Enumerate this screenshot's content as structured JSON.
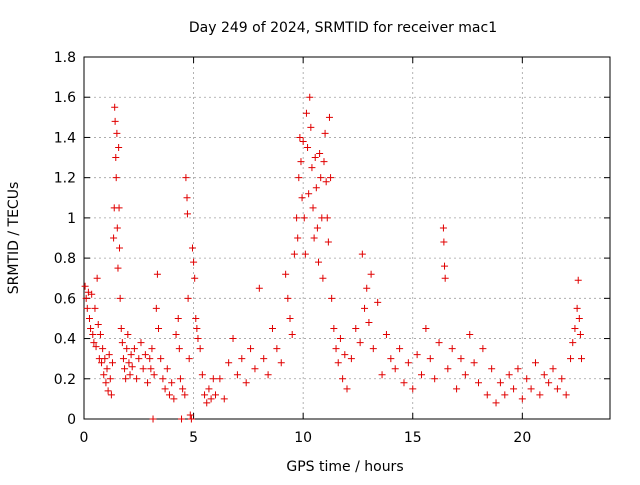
{
  "chart_data": {
    "type": "scatter",
    "title": "Day 249 of 2024, SRMTID for receiver mac1",
    "xlabel": "GPS time / hours",
    "ylabel": "SRMTID / TECUs",
    "xlim": [
      0,
      24
    ],
    "ylim": [
      0,
      1.8
    ],
    "grid": true,
    "marker": "+",
    "color": "#e00000",
    "x_ticks": [
      0,
      5,
      10,
      15,
      20
    ],
    "x_tick_labels": [
      "0",
      "5",
      "10",
      "15",
      "20"
    ],
    "y_ticks": [
      0,
      0.2,
      0.4,
      0.6,
      0.8,
      1,
      1.2,
      1.4,
      1.6,
      1.8
    ],
    "y_tick_labels": [
      "0",
      "0.2",
      "0.4",
      "0.6",
      "0.8",
      "1",
      "1.2",
      "1.4",
      "1.6",
      "1.8"
    ],
    "series": [
      {
        "name": "SRMTID",
        "points": [
          [
            0.05,
            0.66
          ],
          [
            0.1,
            0.6
          ],
          [
            0.15,
            0.55
          ],
          [
            0.2,
            0.63
          ],
          [
            0.25,
            0.5
          ],
          [
            0.3,
            0.45
          ],
          [
            0.35,
            0.62
          ],
          [
            0.4,
            0.42
          ],
          [
            0.45,
            0.38
          ],
          [
            0.5,
            0.55
          ],
          [
            0.55,
            0.36
          ],
          [
            0.6,
            0.7
          ],
          [
            0.65,
            0.47
          ],
          [
            0.7,
            0.3
          ],
          [
            0.75,
            0.42
          ],
          [
            0.8,
            0.28
          ],
          [
            0.85,
            0.35
          ],
          [
            0.9,
            0.22
          ],
          [
            0.95,
            0.3
          ],
          [
            1.0,
            0.18
          ],
          [
            1.05,
            0.25
          ],
          [
            1.1,
            0.14
          ],
          [
            1.15,
            0.32
          ],
          [
            1.2,
            0.2
          ],
          [
            1.25,
            0.12
          ],
          [
            1.3,
            0.28
          ],
          [
            1.35,
            0.9
          ],
          [
            1.38,
            1.05
          ],
          [
            1.4,
            1.55
          ],
          [
            1.42,
            1.48
          ],
          [
            1.45,
            1.3
          ],
          [
            1.47,
            1.2
          ],
          [
            1.5,
            1.42
          ],
          [
            1.52,
            0.95
          ],
          [
            1.55,
            0.75
          ],
          [
            1.58,
            1.35
          ],
          [
            1.6,
            1.05
          ],
          [
            1.62,
            0.85
          ],
          [
            1.65,
            0.6
          ],
          [
            1.7,
            0.45
          ],
          [
            1.75,
            0.38
          ],
          [
            1.8,
            0.3
          ],
          [
            1.85,
            0.25
          ],
          [
            1.9,
            0.2
          ],
          [
            1.95,
            0.35
          ],
          [
            2.0,
            0.42
          ],
          [
            2.05,
            0.28
          ],
          [
            2.1,
            0.22
          ],
          [
            2.15,
            0.32
          ],
          [
            2.2,
            0.26
          ],
          [
            2.3,
            0.35
          ],
          [
            2.4,
            0.2
          ],
          [
            2.5,
            0.3
          ],
          [
            2.6,
            0.38
          ],
          [
            2.7,
            0.25
          ],
          [
            2.8,
            0.32
          ],
          [
            2.9,
            0.18
          ],
          [
            3.0,
            0.3
          ],
          [
            3.05,
            0.25
          ],
          [
            3.1,
            0.35
          ],
          [
            3.15,
            0.0
          ],
          [
            3.2,
            0.22
          ],
          [
            3.3,
            0.55
          ],
          [
            3.35,
            0.72
          ],
          [
            3.4,
            0.45
          ],
          [
            3.5,
            0.3
          ],
          [
            3.6,
            0.2
          ],
          [
            3.7,
            0.15
          ],
          [
            3.8,
            0.25
          ],
          [
            3.9,
            0.12
          ],
          [
            4.0,
            0.18
          ],
          [
            4.1,
            0.1
          ],
          [
            4.2,
            0.42
          ],
          [
            4.3,
            0.5
          ],
          [
            4.35,
            0.35
          ],
          [
            4.4,
            0.2
          ],
          [
            4.45,
            0.0
          ],
          [
            4.5,
            0.15
          ],
          [
            4.6,
            0.12
          ],
          [
            4.65,
            1.2
          ],
          [
            4.7,
            1.1
          ],
          [
            4.72,
            1.02
          ],
          [
            4.75,
            0.6
          ],
          [
            4.8,
            0.3
          ],
          [
            4.85,
            0.02
          ],
          [
            4.9,
            0.0
          ],
          [
            4.95,
            0.85
          ],
          [
            5.0,
            0.78
          ],
          [
            5.05,
            0.7
          ],
          [
            5.1,
            0.5
          ],
          [
            5.15,
            0.45
          ],
          [
            5.2,
            0.4
          ],
          [
            5.3,
            0.35
          ],
          [
            5.4,
            0.22
          ],
          [
            5.5,
            0.12
          ],
          [
            5.6,
            0.08
          ],
          [
            5.7,
            0.15
          ],
          [
            5.8,
            0.1
          ],
          [
            5.9,
            0.2
          ],
          [
            6.0,
            0.12
          ],
          [
            6.2,
            0.2
          ],
          [
            6.4,
            0.1
          ],
          [
            6.6,
            0.28
          ],
          [
            6.8,
            0.4
          ],
          [
            7.0,
            0.22
          ],
          [
            7.2,
            0.3
          ],
          [
            7.4,
            0.18
          ],
          [
            7.6,
            0.35
          ],
          [
            7.8,
            0.25
          ],
          [
            8.0,
            0.65
          ],
          [
            8.2,
            0.3
          ],
          [
            8.4,
            0.22
          ],
          [
            8.6,
            0.45
          ],
          [
            8.8,
            0.35
          ],
          [
            9.0,
            0.28
          ],
          [
            9.2,
            0.72
          ],
          [
            9.3,
            0.6
          ],
          [
            9.4,
            0.5
          ],
          [
            9.5,
            0.42
          ],
          [
            9.6,
            0.82
          ],
          [
            9.7,
            1.0
          ],
          [
            9.75,
            0.9
          ],
          [
            9.8,
            1.2
          ],
          [
            9.85,
            1.4
          ],
          [
            9.9,
            1.28
          ],
          [
            9.95,
            1.1
          ],
          [
            10.0,
            1.38
          ],
          [
            10.05,
            1.0
          ],
          [
            10.1,
            0.82
          ],
          [
            10.15,
            1.52
          ],
          [
            10.2,
            1.35
          ],
          [
            10.25,
            1.12
          ],
          [
            10.3,
            1.6
          ],
          [
            10.35,
            1.45
          ],
          [
            10.4,
            1.25
          ],
          [
            10.45,
            1.05
          ],
          [
            10.5,
            0.9
          ],
          [
            10.55,
            1.3
          ],
          [
            10.6,
            1.15
          ],
          [
            10.65,
            0.95
          ],
          [
            10.7,
            0.78
          ],
          [
            10.75,
            1.32
          ],
          [
            10.8,
            1.2
          ],
          [
            10.85,
            1.0
          ],
          [
            10.9,
            0.7
          ],
          [
            10.95,
            1.28
          ],
          [
            11.0,
            1.42
          ],
          [
            11.05,
            1.18
          ],
          [
            11.1,
            1.0
          ],
          [
            11.15,
            0.88
          ],
          [
            11.2,
            1.5
          ],
          [
            11.25,
            1.2
          ],
          [
            11.3,
            0.6
          ],
          [
            11.4,
            0.45
          ],
          [
            11.5,
            0.35
          ],
          [
            11.6,
            0.28
          ],
          [
            11.7,
            0.4
          ],
          [
            11.8,
            0.2
          ],
          [
            11.9,
            0.32
          ],
          [
            12.0,
            0.15
          ],
          [
            12.2,
            0.3
          ],
          [
            12.4,
            0.45
          ],
          [
            12.6,
            0.38
          ],
          [
            12.7,
            0.82
          ],
          [
            12.8,
            0.55
          ],
          [
            12.9,
            0.65
          ],
          [
            13.0,
            0.48
          ],
          [
            13.1,
            0.72
          ],
          [
            13.2,
            0.35
          ],
          [
            13.4,
            0.58
          ],
          [
            13.6,
            0.22
          ],
          [
            13.8,
            0.42
          ],
          [
            14.0,
            0.3
          ],
          [
            14.2,
            0.25
          ],
          [
            14.4,
            0.35
          ],
          [
            14.6,
            0.18
          ],
          [
            14.8,
            0.28
          ],
          [
            15.0,
            0.15
          ],
          [
            15.2,
            0.32
          ],
          [
            15.4,
            0.22
          ],
          [
            15.6,
            0.45
          ],
          [
            15.8,
            0.3
          ],
          [
            16.0,
            0.2
          ],
          [
            16.2,
            0.38
          ],
          [
            16.4,
            0.95
          ],
          [
            16.42,
            0.88
          ],
          [
            16.45,
            0.76
          ],
          [
            16.48,
            0.7
          ],
          [
            16.6,
            0.25
          ],
          [
            16.8,
            0.35
          ],
          [
            17.0,
            0.15
          ],
          [
            17.2,
            0.3
          ],
          [
            17.4,
            0.22
          ],
          [
            17.6,
            0.42
          ],
          [
            17.8,
            0.28
          ],
          [
            18.0,
            0.18
          ],
          [
            18.2,
            0.35
          ],
          [
            18.4,
            0.12
          ],
          [
            18.6,
            0.25
          ],
          [
            18.8,
            0.08
          ],
          [
            19.0,
            0.18
          ],
          [
            19.2,
            0.12
          ],
          [
            19.4,
            0.22
          ],
          [
            19.6,
            0.15
          ],
          [
            19.8,
            0.25
          ],
          [
            20.0,
            0.1
          ],
          [
            20.2,
            0.2
          ],
          [
            20.4,
            0.15
          ],
          [
            20.6,
            0.28
          ],
          [
            20.8,
            0.12
          ],
          [
            21.0,
            0.22
          ],
          [
            21.2,
            0.18
          ],
          [
            21.4,
            0.25
          ],
          [
            21.6,
            0.15
          ],
          [
            21.8,
            0.2
          ],
          [
            22.0,
            0.12
          ],
          [
            22.2,
            0.3
          ],
          [
            22.3,
            0.38
          ],
          [
            22.4,
            0.45
          ],
          [
            22.5,
            0.55
          ],
          [
            22.55,
            0.69
          ],
          [
            22.6,
            0.5
          ],
          [
            22.65,
            0.42
          ],
          [
            22.7,
            0.3
          ]
        ]
      }
    ]
  }
}
